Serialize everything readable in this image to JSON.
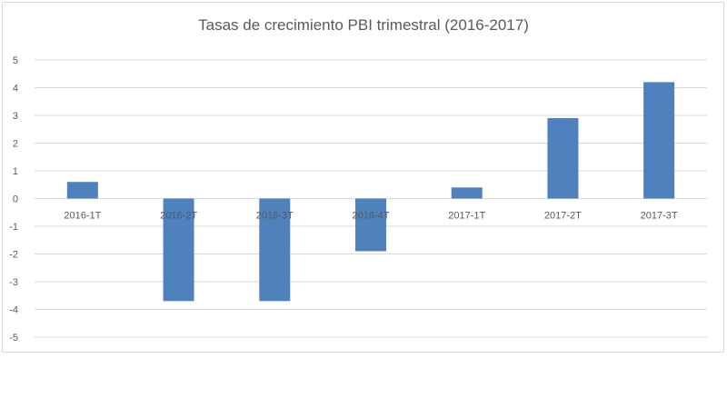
{
  "chart_data": {
    "type": "bar",
    "title": "Tasas de crecimiento PBI trimestral (2016-2017)",
    "xlabel": "",
    "ylabel": "",
    "categories": [
      "2016-1T",
      "2016-2T",
      "2016-3T",
      "2016-4T",
      "2017-1T",
      "2017-2T",
      "2017-3T"
    ],
    "values": [
      0.6,
      -3.7,
      -3.7,
      -1.9,
      0.4,
      2.9,
      4.2
    ],
    "ylim": [
      -5,
      5
    ],
    "yticks": [
      "5",
      "4",
      "3",
      "2",
      "1",
      "0",
      "-1",
      "-2",
      "-3",
      "-4",
      "-5"
    ],
    "grid": true,
    "legend": "none",
    "colors": {
      "bar": "#4f81bd",
      "grid": "#d9d9d9",
      "text": "#595959"
    }
  }
}
